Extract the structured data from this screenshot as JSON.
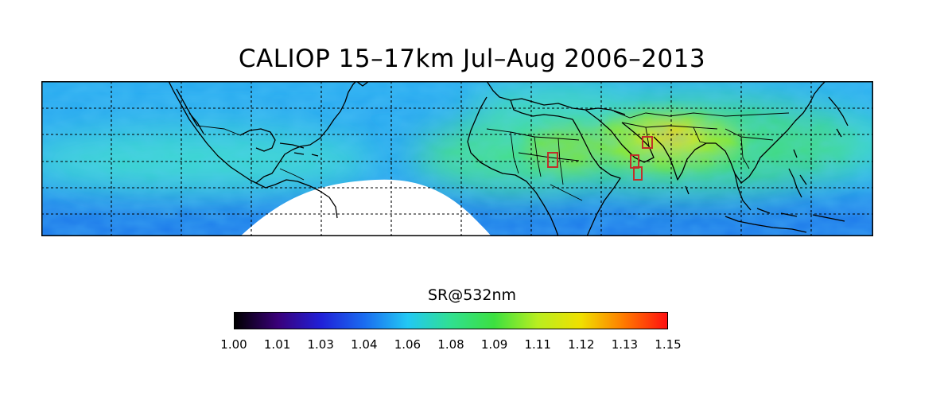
{
  "title": "CALIOP 15–17km Jul–Aug 2006–2013",
  "colorbar": {
    "label": "SR@532nm",
    "ticks": [
      "1.00",
      "1.01",
      "1.03",
      "1.04",
      "1.06",
      "1.08",
      "1.09",
      "1.11",
      "1.12",
      "1.13",
      "1.15"
    ],
    "range": [
      1.0,
      1.15
    ],
    "colors": [
      "#000000",
      "#3a007a",
      "#2020d8",
      "#1a6cf0",
      "#22c8f4",
      "#30e090",
      "#3ce040",
      "#b8ee20",
      "#f0e000",
      "#ff7a00",
      "#ff1010"
    ]
  },
  "map": {
    "projection": "cylindrical",
    "lon_range": [
      -180,
      180
    ],
    "lat_range": [
      -25,
      45
    ],
    "gridlines": "dashed",
    "highlight_box_color": "#c0302a",
    "missing_data_fill": "#ffffff"
  }
}
